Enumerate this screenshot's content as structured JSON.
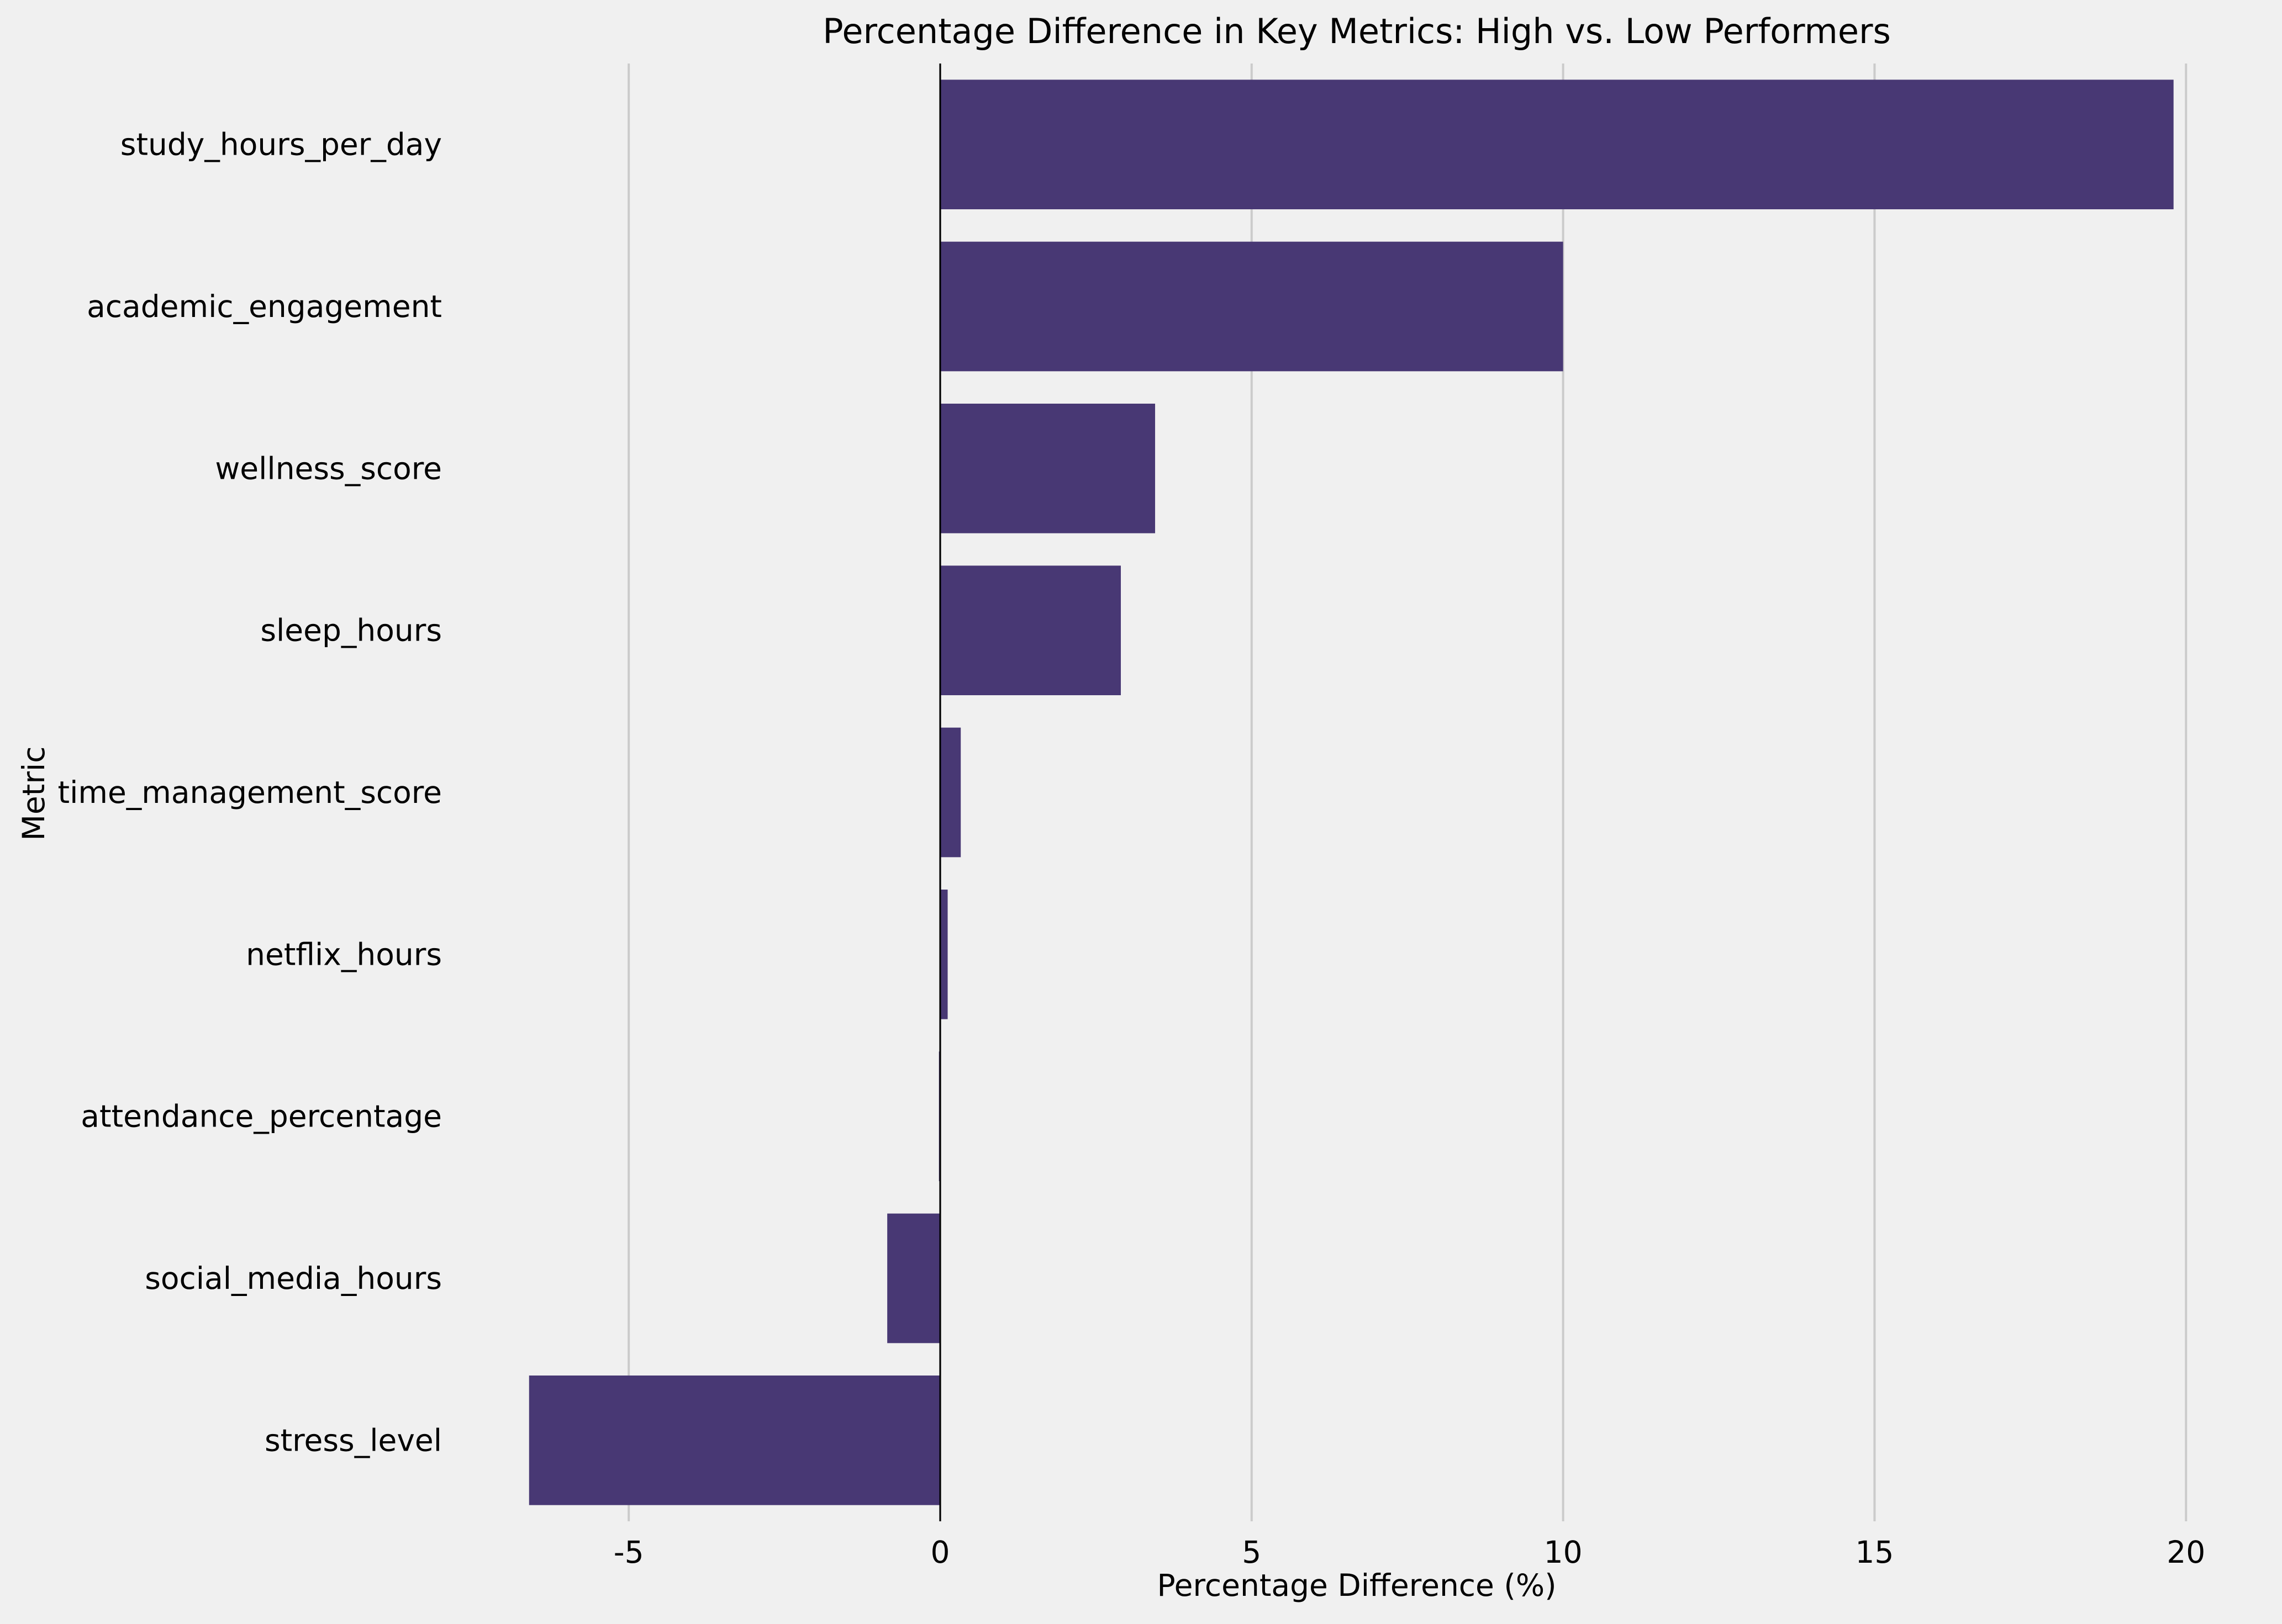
{
  "chart_data": {
    "type": "bar",
    "orientation": "horizontal",
    "title": "Percentage Difference in Key Metrics: High vs. Low Performers",
    "xlabel": "Percentage Difference (%)",
    "ylabel": "Metric",
    "categories": [
      "study_hours_per_day",
      "academic_engagement",
      "wellness_score",
      "sleep_hours",
      "time_management_score",
      "netflix_hours",
      "attendance_percentage",
      "social_media_hours",
      "stress_level"
    ],
    "values": [
      19.8,
      10.0,
      3.45,
      2.9,
      0.33,
      0.12,
      -0.02,
      -0.85,
      -6.6
    ],
    "xlim": [
      -7.6,
      21.0
    ],
    "xticks": [
      -5,
      0,
      5,
      10,
      15,
      20
    ],
    "xtick_labels": [
      "-5",
      "0",
      "5",
      "10",
      "15",
      "20"
    ],
    "grid": "vertical",
    "legend": "none",
    "colors": {
      "bar": "#483874",
      "background": "#f0f0f0",
      "grid": "#cbcbcb",
      "zero_line": "#000000"
    }
  }
}
